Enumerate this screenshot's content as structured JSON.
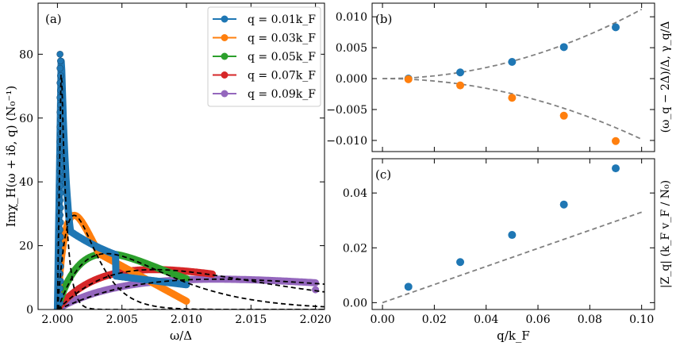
{
  "colors": {
    "blue": "#1f77b4",
    "orange": "#ff7f0e",
    "green": "#2ca02c",
    "red": "#d62728",
    "purple": "#9467bd",
    "black": "#000000",
    "gray": "#808080"
  },
  "chart_data": [
    {
      "panel": "(a)",
      "type": "line",
      "xlabel": "ω/Δ",
      "ylabel": "Imχ_H(ω + iδ, q)  (N₀⁻¹)",
      "xlim": [
        1.9985,
        2.0207
      ],
      "ylim": [
        0,
        96
      ],
      "x_ticks": [
        "2.000",
        "2.005",
        "2.010",
        "2.015",
        "2.020"
      ],
      "y_ticks": [
        "0",
        "20",
        "40",
        "60",
        "80"
      ],
      "legend_position": "top-right",
      "legend": [
        "q = 0.01k_F",
        "q = 0.03k_F",
        "q = 0.05k_F",
        "q = 0.07k_F",
        "q = 0.09k_F"
      ],
      "series": [
        {
          "name": "q = 0.01k_F",
          "color": "blue",
          "x0": 2.0,
          "peak_x": 2.0003,
          "peak_y": 80,
          "x_end": 2.01,
          "style": "line-with-markers"
        },
        {
          "name": "q = 0.03k_F",
          "color": "orange",
          "x0": 2.0,
          "peak_x": 2.0013,
          "peak_y": 29.5,
          "x_end": 2.01,
          "style": "line-with-markers"
        },
        {
          "name": "q = 0.05k_F",
          "color": "green",
          "x0": 2.0,
          "peak_x": 2.0038,
          "peak_y": 17.5,
          "x_end": 2.01,
          "style": "line-with-markers"
        },
        {
          "name": "q = 0.07k_F",
          "color": "red",
          "x0": 2.0,
          "peak_x": 2.0075,
          "peak_y": 12.5,
          "x_end": 2.012,
          "style": "line-with-markers"
        },
        {
          "name": "q = 0.09k_F",
          "color": "purple",
          "x0": 2.0,
          "peak_x": 2.0123,
          "peak_y": 9.5,
          "x_end": 2.02,
          "y_end": 6.2,
          "style": "line-with-markers"
        }
      ]
    },
    {
      "panel": "(b)",
      "type": "scatter",
      "ylabel": "(ω_q − 2Δ)/Δ, γ_q/Δ",
      "xlim": [
        -0.004,
        0.105
      ],
      "ylim": [
        -0.0118,
        0.0122
      ],
      "y_ticks": [
        "0.010",
        "0.005",
        "0.000",
        "−0.005",
        "−0.010"
      ],
      "x": [
        0.01,
        0.03,
        0.05,
        0.07,
        0.09
      ],
      "series": [
        {
          "color": "blue",
          "values": [
            0.0,
            0.001,
            0.0027,
            0.0051,
            0.0083
          ]
        },
        {
          "color": "orange",
          "values": [
            -0.0001,
            -0.0011,
            -0.0031,
            -0.006,
            -0.0101
          ]
        }
      ],
      "dashed_fits": [
        {
          "form": "a*x^2",
          "a": 1.12
        },
        {
          "form": "a*x^2",
          "a": -0.98
        }
      ]
    },
    {
      "panel": "(c)",
      "type": "scatter",
      "xlabel": "q/k_F",
      "ylabel": "|Z_q|  (k_F v_F / N₀)",
      "xlim": [
        -0.004,
        0.105
      ],
      "ylim": [
        -0.0025,
        0.0525
      ],
      "x_ticks": [
        "0.00",
        "0.02",
        "0.04",
        "0.06",
        "0.08",
        "0.10"
      ],
      "y_ticks": [
        "0.00",
        "0.02",
        "0.04"
      ],
      "x": [
        0.01,
        0.03,
        0.05,
        0.07,
        0.09
      ],
      "series": [
        {
          "color": "blue",
          "values": [
            0.0058,
            0.0148,
            0.0247,
            0.0358,
            0.049
          ]
        }
      ],
      "dashed_fits": [
        {
          "form": "a*x",
          "a": 0.33
        }
      ]
    }
  ]
}
